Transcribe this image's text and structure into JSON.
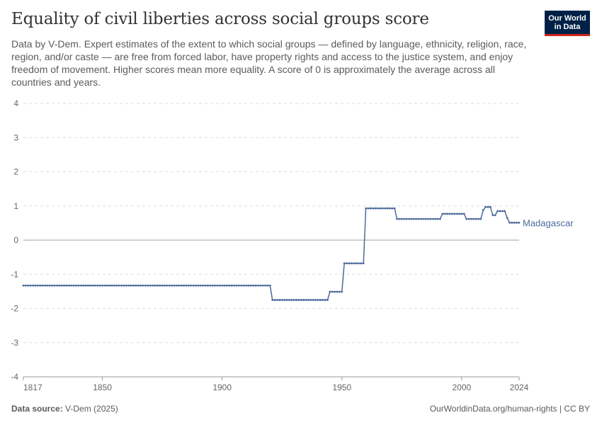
{
  "header": {
    "title": "Equality of civil liberties across social groups score",
    "subtitle": "Data by V-Dem. Expert estimates of the extent to which social groups — defined by language, ethnicity, religion, race, region, and/or caste — are free from forced labor, have property rights and access to the justice system, and enjoy freedom of movement. Higher scores mean more equality. A score of 0 is approximately the average across all countries and years.",
    "logo_line1": "Our World",
    "logo_line2": "in Data"
  },
  "footer": {
    "source_label": "Data source:",
    "source_value": "V-Dem (2025)",
    "credit": "OurWorldinData.org/human-rights | CC BY"
  },
  "colors": {
    "series": "#4c6a9c",
    "grid": "#dddddd",
    "zero_line": "#a0a0a0",
    "logo_bg": "#002147",
    "logo_accent": "#ce261e"
  },
  "chart_data": {
    "type": "line",
    "xlim": [
      1817,
      2024
    ],
    "ylim": [
      -4,
      4
    ],
    "x_ticks": [
      1817,
      1850,
      1900,
      1950,
      2000,
      2024
    ],
    "y_ticks": [
      4,
      3,
      2,
      1,
      0,
      -1,
      -2,
      -3,
      -4
    ],
    "grid": true,
    "series": [
      {
        "name": "Madagascar",
        "steps": [
          {
            "from": 1817,
            "to": 1920,
            "value": -1.33
          },
          {
            "from": 1921,
            "to": 1944,
            "value": -1.75
          },
          {
            "from": 1945,
            "to": 1950,
            "value": -1.51
          },
          {
            "from": 1951,
            "to": 1959,
            "value": -0.68
          },
          {
            "from": 1960,
            "to": 1972,
            "value": 0.93
          },
          {
            "from": 1973,
            "to": 1991,
            "value": 0.62
          },
          {
            "from": 1992,
            "to": 2001,
            "value": 0.77
          },
          {
            "from": 2002,
            "to": 2008,
            "value": 0.62
          },
          {
            "from": 2009,
            "to": 2009,
            "value": 0.88
          },
          {
            "from": 2010,
            "to": 2012,
            "value": 0.97
          },
          {
            "from": 2013,
            "to": 2014,
            "value": 0.73
          },
          {
            "from": 2015,
            "to": 2018,
            "value": 0.85
          },
          {
            "from": 2019,
            "to": 2019,
            "value": 0.65
          },
          {
            "from": 2020,
            "to": 2024,
            "value": 0.51
          }
        ]
      }
    ]
  }
}
